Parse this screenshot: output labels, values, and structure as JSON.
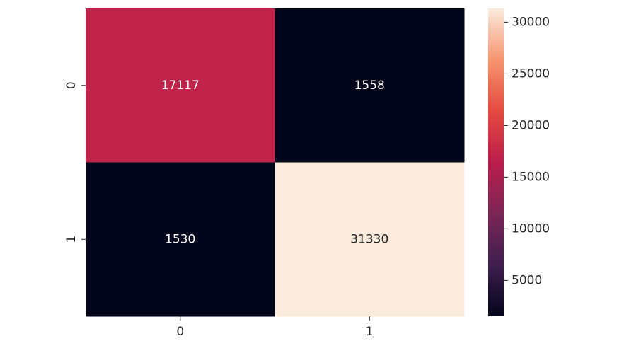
{
  "chart_data": {
    "type": "heatmap",
    "title": "",
    "xlabel": "",
    "ylabel": "",
    "x_categories": [
      "0",
      "1"
    ],
    "y_categories": [
      "0",
      "1"
    ],
    "matrix": [
      [
        17117,
        1558
      ],
      [
        1530,
        31330
      ]
    ],
    "cell_labels": [
      [
        "17117",
        "1558"
      ],
      [
        "1530",
        "31330"
      ]
    ],
    "colorbar": {
      "min": 1530,
      "max": 31330,
      "ticks": [
        5000,
        10000,
        15000,
        20000,
        25000,
        30000
      ],
      "tick_labels": [
        "5000",
        "10000",
        "15000",
        "20000",
        "25000",
        "30000"
      ],
      "colormap_stops": [
        "#03051a",
        "#3e1e4f",
        "#7b2655",
        "#bb1e4c",
        "#e54a3f",
        "#f6946e",
        "#faebdd"
      ]
    },
    "grid": false,
    "legend": "none"
  }
}
